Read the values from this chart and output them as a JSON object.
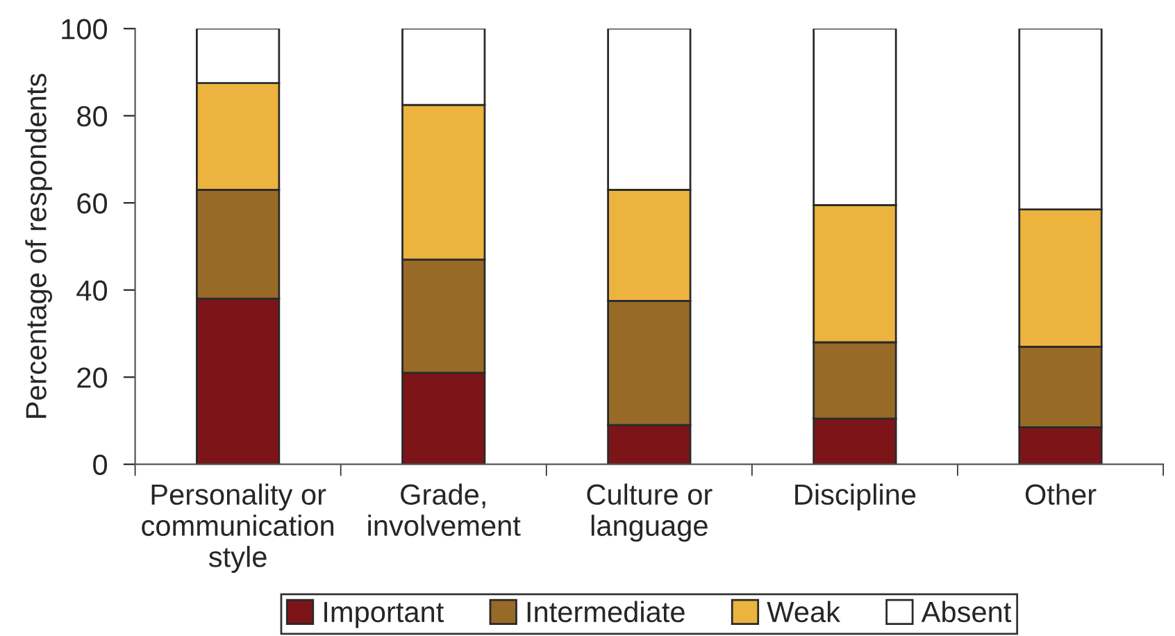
{
  "chart_data": {
    "type": "bar",
    "stacked": true,
    "ylabel": "Percentage of respondents",
    "categories": [
      "Personality or\ncommunication\nstyle",
      "Grade,\ninvolvement",
      "Culture or\nlanguage",
      "Discipline",
      "Other"
    ],
    "series": [
      {
        "name": "Important",
        "color": "#7d1518",
        "values": [
          38,
          21,
          9,
          10.5,
          8.5
        ]
      },
      {
        "name": "Intermediate",
        "color": "#986a28",
        "values": [
          25,
          26,
          28.5,
          17.5,
          18.5
        ]
      },
      {
        "name": "Weak",
        "color": "#ecb43f",
        "values": [
          24.5,
          35.5,
          25.5,
          31.5,
          31.5
        ]
      },
      {
        "name": "Absent",
        "color": "#ffffff",
        "values": [
          12.5,
          17.5,
          37,
          40.5,
          41.5
        ]
      }
    ],
    "ylim": [
      0,
      100
    ],
    "yticks": [
      0,
      20,
      40,
      60,
      80,
      100
    ],
    "grid": false,
    "legend": "bottom"
  }
}
